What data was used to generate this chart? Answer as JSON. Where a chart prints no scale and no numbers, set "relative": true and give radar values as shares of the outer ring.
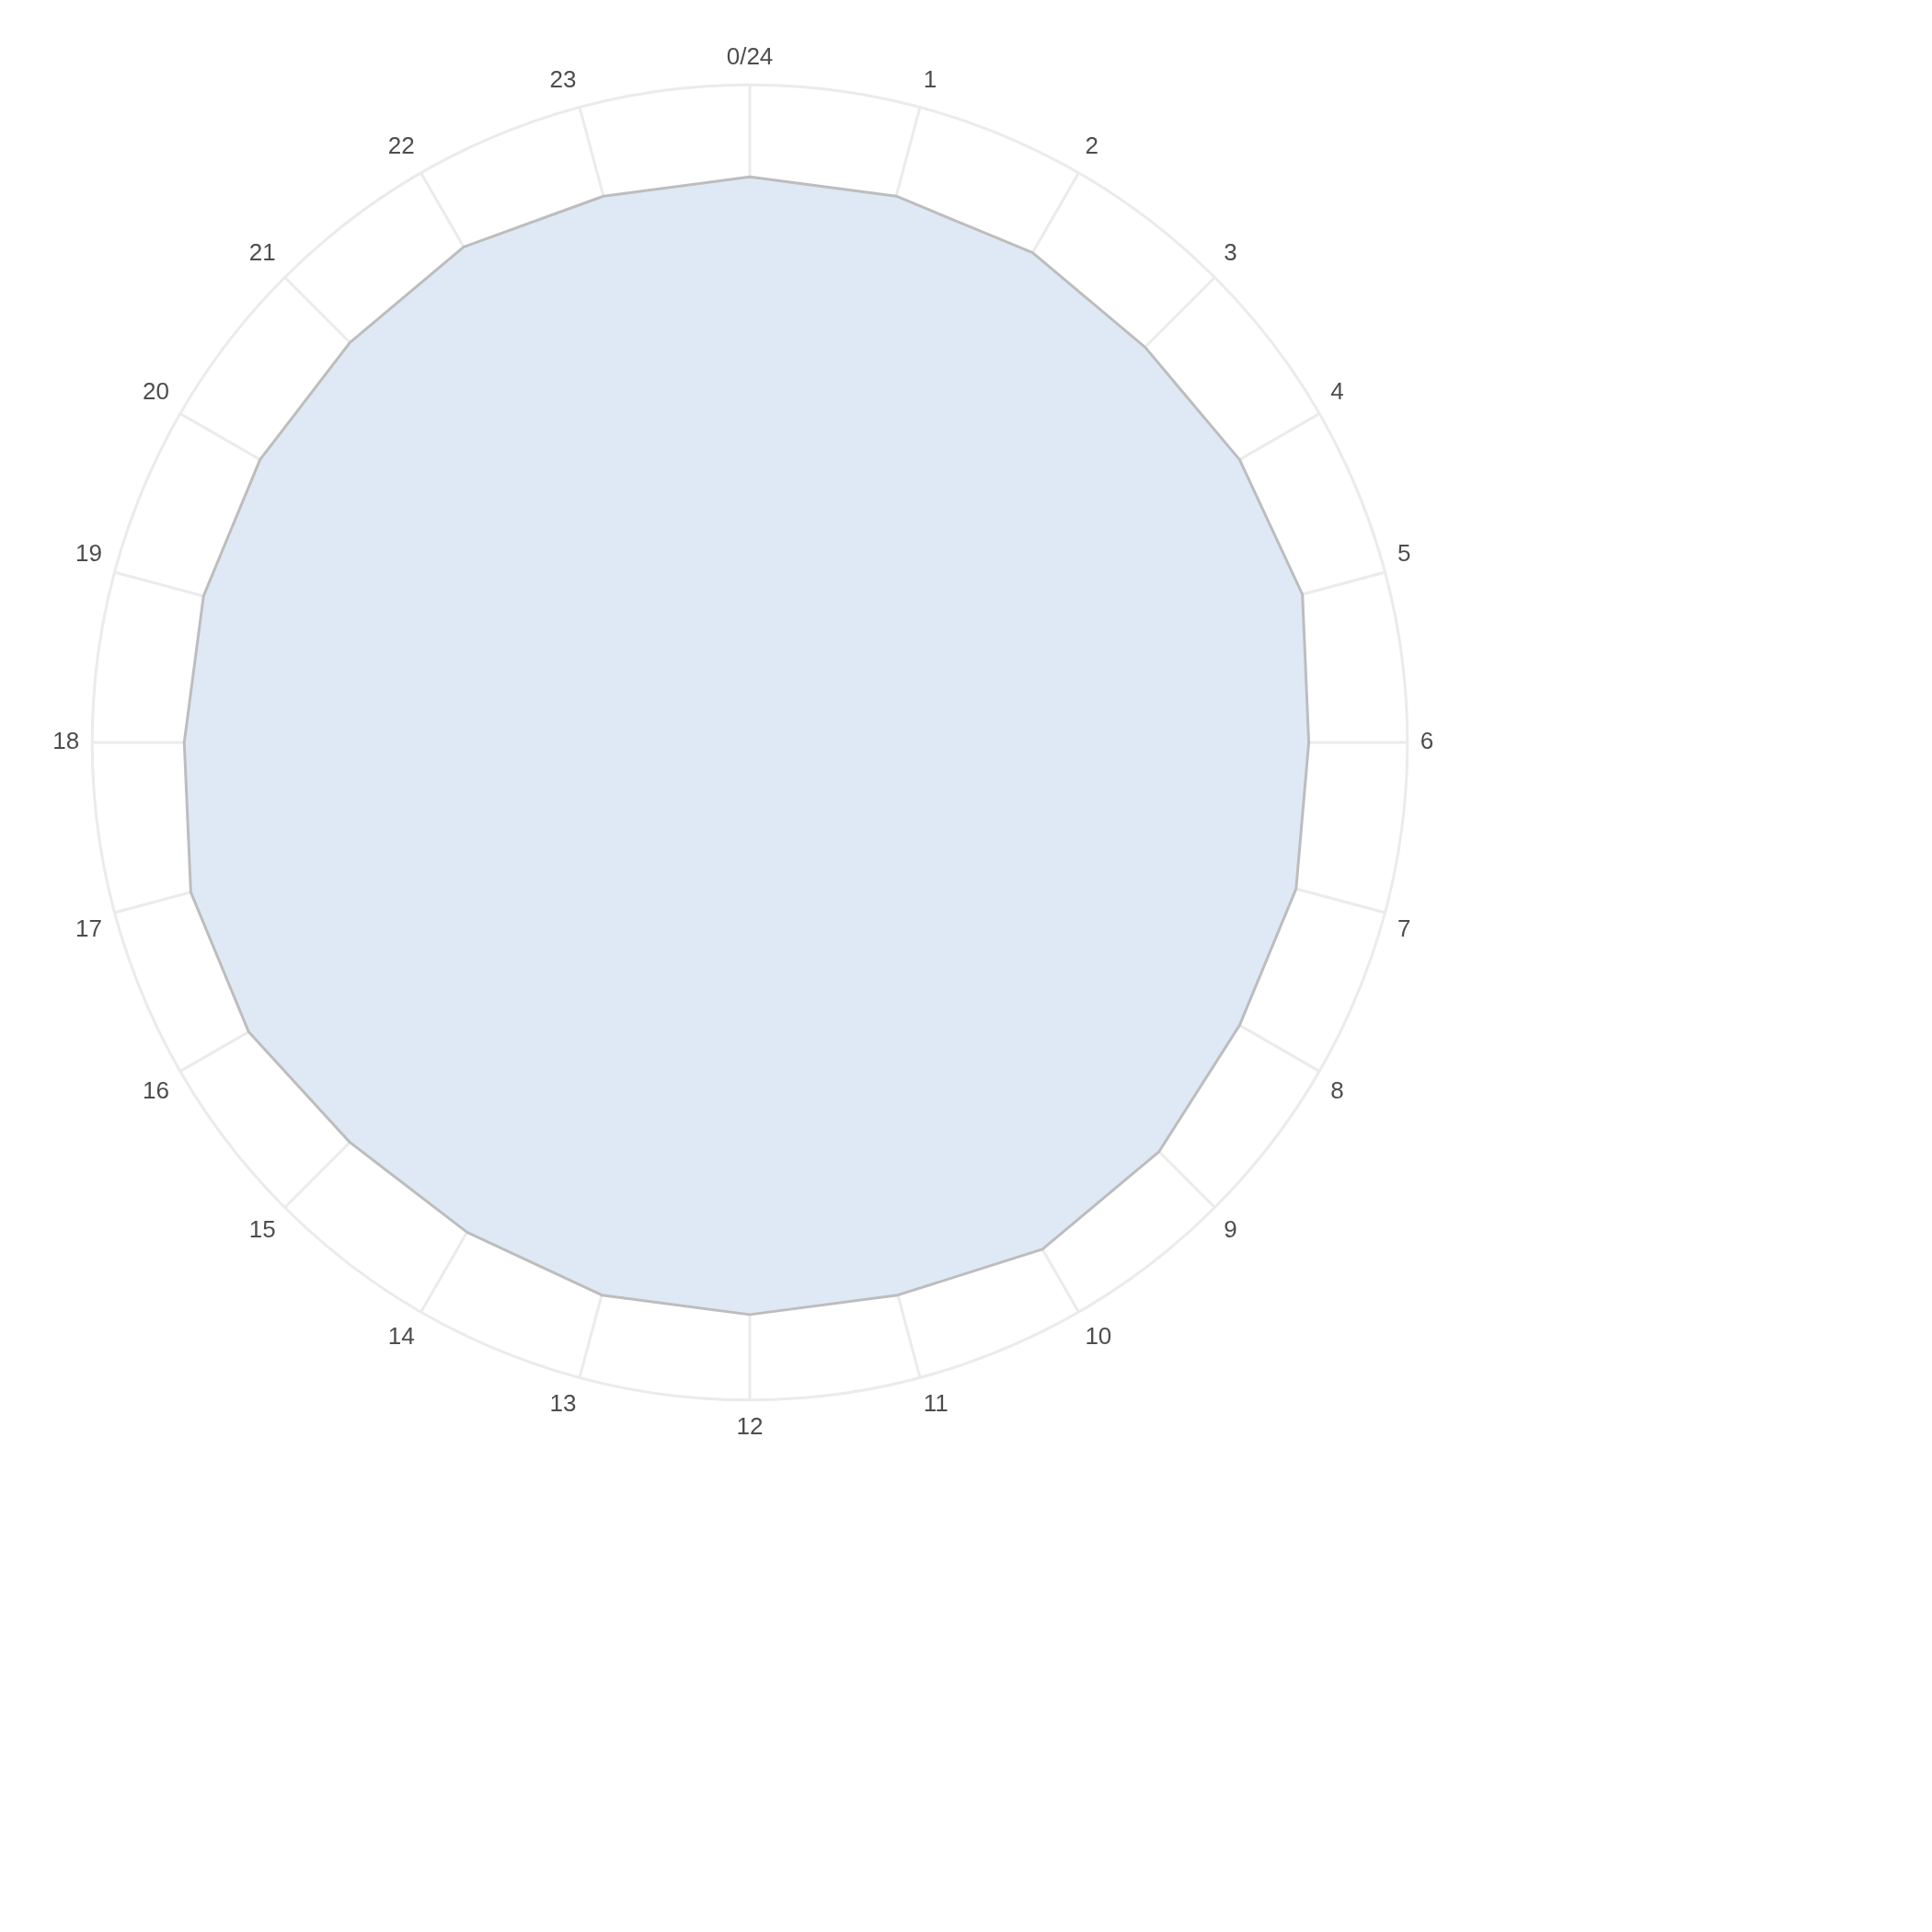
{
  "chart_data": {
    "type": "radar",
    "relative": true,
    "grid": true,
    "legend": false,
    "marker": "none",
    "categories": [
      "0/24",
      "1",
      "2",
      "3",
      "4",
      "5",
      "6",
      "7",
      "8",
      "9",
      "10",
      "11",
      "12",
      "13",
      "14",
      "15",
      "16",
      "17",
      "18",
      "19",
      "20",
      "21",
      "22",
      "23"
    ],
    "series": [
      {
        "color": "#dfe9f5",
        "values": [
          0.86,
          0.86,
          0.86,
          0.85,
          0.86,
          0.87,
          0.85,
          0.86,
          0.86,
          0.88,
          0.89,
          0.87,
          0.87,
          0.87,
          0.86,
          0.86,
          0.88,
          0.88,
          0.86,
          0.86,
          0.86,
          0.86,
          0.87,
          0.86
        ]
      }
    ]
  }
}
